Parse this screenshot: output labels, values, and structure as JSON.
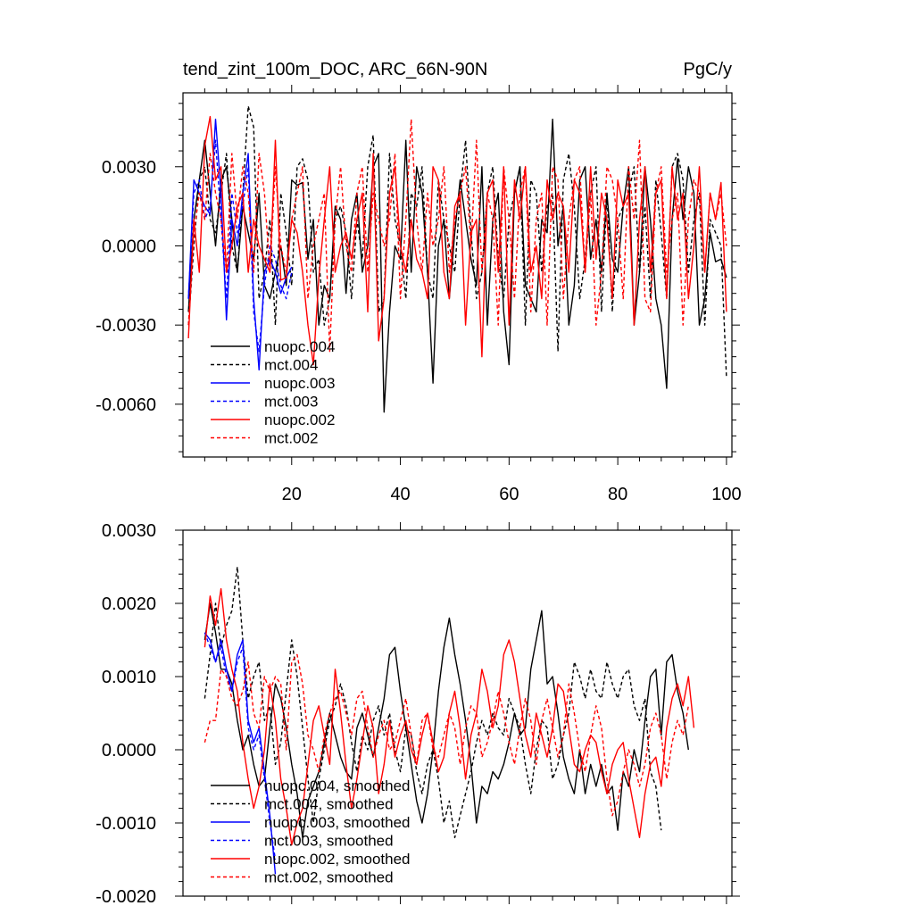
{
  "figure": {
    "title_left": "tend_zint_100m_DOC, ARC_66N-90N",
    "title_right": "PgC/y"
  },
  "colors": {
    "black": "#000000",
    "blue": "#0000ff",
    "red": "#ff0000"
  },
  "chart_data": [
    {
      "type": "line",
      "title": "tend_zint_100m_DOC, ARC_66N-90N",
      "units": "PgC/y",
      "xlabel": "",
      "ylabel": "",
      "xlim": [
        0,
        101
      ],
      "ylim": [
        -0.008,
        0.0058
      ],
      "xticks": [
        20,
        40,
        60,
        80,
        100
      ],
      "xtick_labels": [
        "20",
        "40",
        "60",
        "80",
        "100"
      ],
      "yticks": [
        -0.006,
        -0.003,
        0.0,
        0.003
      ],
      "ytick_labels": [
        "-0.0060",
        "-0.0030",
        "0.0000",
        "0.0030"
      ],
      "legend_position": "lower-left",
      "series": [
        {
          "name": "nuopc.004",
          "color": "black",
          "dash": false,
          "x_start": 1,
          "values": [
            -0.0025,
            0.001,
            0.0025,
            0.004,
            0.002,
            0.0,
            0.0025,
            0.003,
            0.001,
            -0.001,
            0.0015,
            0.0005,
            -0.0005,
            0.002,
            -0.0015,
            -0.002,
            -0.001,
            0.0,
            -0.0015,
            0.0025,
            0.0023,
            0.0024,
            -0.0005,
            0.001,
            -0.003,
            -0.0015,
            -0.002,
            0.0015,
            0.001,
            -0.0018,
            0.001,
            0.002,
            -0.001,
            0.0,
            0.003,
            0.0035,
            -0.0063,
            -0.0025,
            0.0,
            -0.0005,
            0.004,
            -0.001,
            0.003,
            0.002,
            -0.001,
            -0.0052,
            0.0,
            0.001,
            -0.002,
            0.0005,
            0.0025,
            0.001,
            -0.0005,
            -0.0015,
            0.003,
            -0.003,
            0.001,
            0.002,
            -0.0025,
            -0.0045,
            0.002,
            0.003,
            -0.0015,
            -0.002,
            -0.0025,
            0.001,
            0.0005,
            0.0048,
            0.0,
            0.0015,
            -0.003,
            -0.0015,
            0.0025,
            0.003,
            -0.0005,
            0.001,
            -0.001,
            0.002,
            -0.0005,
            -0.001,
            0.0015,
            0.003,
            -0.003,
            -0.001,
            0.003,
            0.001,
            -0.002,
            -0.003,
            -0.0054,
            0.001,
            0.0033,
            0.001,
            0.003,
            0.002,
            -0.003,
            -0.002,
            0.0005,
            -0.0006,
            -0.0005,
            -0.0012
          ]
        },
        {
          "name": "mct.004",
          "color": "black",
          "dash": true,
          "x_start": 1,
          "values": [
            -0.003,
            0.0,
            0.0025,
            0.003,
            0.001,
            0.0005,
            0.002,
            0.0035,
            0.0,
            -0.001,
            0.002,
            0.0053,
            0.0045,
            -0.002,
            -0.001,
            0.001,
            -0.003,
            0.002,
            0.0005,
            -0.0015,
            0.003,
            0.0033,
            0.0025,
            -0.001,
            -0.0005,
            -0.003,
            -0.002,
            0.001,
            0.0015,
            0.0005,
            -0.002,
            0.001,
            -0.0005,
            0.003,
            0.0042,
            -0.0025,
            -0.002,
            0.0035,
            0.001,
            0.0,
            -0.002,
            0.002,
            0.0015,
            0.003,
            -0.001,
            -0.002,
            0.0025,
            0.001,
            0.0,
            -0.001,
            0.002,
            0.004,
            0.0005,
            -0.002,
            -0.001,
            0.002,
            0.003,
            -0.0005,
            -0.002,
            0.001,
            0.002,
            0.003,
            -0.003,
            0.0025,
            0.002,
            -0.001,
            0.0015,
            0.002,
            -0.004,
            0.0025,
            0.0035,
            0.0015,
            -0.002,
            -0.0005,
            0.002,
            0.003,
            -0.0025,
            0.002,
            -0.0025,
            0.001,
            0.0015,
            0.002,
            0.003,
            -0.001,
            0.0015,
            -0.002,
            0.0025,
            0.0005,
            -0.002,
            0.003,
            0.0035,
            0.0025,
            -0.001,
            0.001,
            0.002,
            -0.003,
            0.001,
            0.0005,
            0.0,
            -0.005
          ]
        },
        {
          "name": "nuopc.003",
          "color": "blue",
          "dash": false,
          "x_start": 1,
          "values": [
            -0.002,
            0.0025,
            0.002,
            0.0015,
            0.0012,
            0.0048,
            0.002,
            -0.0028,
            0.001,
            0.0,
            0.002,
            0.0035,
            -0.002,
            -0.0047,
            -0.001,
            -0.0005,
            -0.001,
            -0.0018,
            -0.0012,
            -0.0008
          ]
        },
        {
          "name": "mct.003",
          "color": "blue",
          "dash": true,
          "x_start": 1,
          "values": [
            -0.002,
            0.002,
            0.0025,
            0.001,
            0.0015,
            0.004,
            0.001,
            -0.002,
            0.002,
            0.0005,
            0.0015,
            0.003,
            -0.0025,
            -0.004,
            -0.0015,
            0.0,
            -0.0005,
            -0.0015,
            -0.002,
            -0.001
          ]
        },
        {
          "name": "nuopc.002",
          "color": "red",
          "dash": false,
          "x_start": 1,
          "values": [
            -0.0035,
            0.001,
            -0.001,
            0.0038,
            0.0049,
            0.0025,
            0.003,
            -0.001,
            0.0,
            0.0015,
            0.002,
            -0.001,
            0.001,
            0.0,
            -0.0005,
            -0.001,
            0.004,
            -0.0013,
            -0.0012,
            0.001,
            0.0005,
            -0.001,
            -0.003,
            -0.0045,
            -0.0012,
            0.001,
            0.003,
            -0.001,
            0.0,
            0.0005,
            -0.0005,
            0.001,
            0.002,
            -0.0025,
            0.0035,
            -0.0036,
            -0.002,
            0.002,
            0.003,
            0.0,
            -0.001,
            0.001,
            -0.0005,
            -0.001,
            -0.002,
            0.003,
            0.0025,
            -0.001,
            -0.002,
            0.0015,
            0.002,
            -0.003,
            0.0005,
            0.001,
            -0.0042,
            0.002,
            0.0025,
            -0.001,
            0.003,
            -0.003,
            0.0025,
            0.001,
            0.003,
            -0.001,
            0.0,
            -0.002,
            0.0025,
            0.001,
            0.002,
            0.0015,
            -0.001,
            0.0025,
            0.002,
            -0.001,
            0.003,
            -0.0005,
            0.002,
            0.001,
            -0.002,
            0.0025,
            0.0015,
            0.002,
            -0.003,
            0.001,
            0.003,
            -0.001,
            0.002,
            0.0025,
            -0.002,
            0.003,
            0.001,
            0.002,
            -0.002,
            0.0,
            0.003,
            -0.001,
            0.002,
            0.001,
            0.0024,
            -0.0025
          ]
        },
        {
          "name": "mct.002",
          "color": "red",
          "dash": true,
          "x_start": 1,
          "values": [
            -0.003,
            0.0005,
            0.002,
            0.001,
            0.0035,
            0.002,
            0.001,
            -0.001,
            0.0035,
            0.001,
            0.003,
            0.002,
            -0.001,
            0.0035,
            0.002,
            -0.001,
            0.003,
            0.0,
            -0.001,
            0.001,
            0.002,
            0.003,
            -0.002,
            0.0,
            0.001,
            0.002,
            -0.004,
            0.001,
            0.003,
            0.0,
            -0.001,
            0.002,
            0.003,
            -0.001,
            0.002,
            0.001,
            0.0,
            0.001,
            0.0035,
            -0.002,
            0.001,
            0.0048,
            0.001,
            -0.001,
            0.002,
            0.0,
            0.001,
            0.003,
            -0.001,
            0.001,
            0.002,
            0.003,
            0.0,
            0.004,
            -0.001,
            0.002,
            0.001,
            -0.003,
            0.003,
            0.001,
            -0.002,
            0.002,
            0.003,
            -0.0025,
            0.001,
            0.002,
            -0.003,
            0.003,
            0.0025,
            -0.002,
            0.001,
            0.0025,
            0.003,
            -0.001,
            0.002,
            -0.003,
            -0.001,
            0.003,
            0.0025,
            0.001,
            -0.002,
            0.003,
            0.001,
            0.004,
            -0.002,
            -0.0025,
            0.002,
            0.003,
            -0.001,
            0.001,
            0.002,
            -0.003,
            0.001,
            0.0025,
            0.002,
            -0.001,
            0.002,
            0.001,
            0.002,
            0.0
          ]
        }
      ]
    },
    {
      "type": "line",
      "title": "",
      "xlabel": "",
      "ylabel": "",
      "xlim": [
        0,
        101
      ],
      "ylim": [
        -0.002,
        0.003
      ],
      "xticks": [
        20,
        40,
        60,
        80,
        100
      ],
      "yticks": [
        -0.002,
        -0.001,
        0.0,
        0.001,
        0.002,
        0.003
      ],
      "ytick_labels": [
        "-0.0020",
        "-0.0010",
        "0.0000",
        "0.0010",
        "0.0020",
        "0.0030"
      ],
      "legend_position": "lower-left",
      "series": [
        {
          "name": "nuopc.004, smoothed",
          "color": "black",
          "dash": false,
          "x_start": 4,
          "values": [
            0.0015,
            0.002,
            0.0016,
            0.0011,
            0.0011,
            0.0009,
            0.0004,
            0.0,
            0.0002,
            -0.0002,
            -0.0005,
            -0.0004,
            0.0003,
            0.0009,
            0.0007,
            0.0003,
            -0.0002,
            -0.0006,
            -0.0012,
            -0.0007,
            -0.0005,
            -0.0003,
            0.0001,
            0.0005,
            0.0002,
            -0.0001,
            -0.0003,
            -0.0004,
            0.0003,
            0.0005,
            0.0002,
            -0.0001,
            0.0003,
            0.0007,
            0.0013,
            0.0014,
            0.0008,
            0.0003,
            -0.0002,
            -0.0007,
            -0.001,
            -0.0006,
            0.0,
            0.0008,
            0.0014,
            0.0018,
            0.0013,
            0.0009,
            0.0004,
            -0.0002,
            -0.001,
            -0.0005,
            -0.0006,
            -0.0003,
            -0.0004,
            -0.0002,
            0.0001,
            0.0005,
            0.0002,
            0.0003,
            0.0011,
            0.0015,
            0.0019,
            0.0009,
            0.001,
            0.0005,
            -0.0001,
            -0.0004,
            -0.0006,
            0.0,
            -0.0006,
            -0.0002,
            -0.0005,
            -0.0002,
            -0.0006,
            -0.0005,
            -0.0011,
            -0.0003,
            -0.0005,
            0.0,
            -0.0003,
            0.0004,
            0.001,
            0.0011,
            0.0002,
            0.0012,
            0.0013,
            0.0008,
            0.0005,
            0.0
          ]
        },
        {
          "name": "mct.004, smoothed",
          "color": "black",
          "dash": true,
          "x_start": 4,
          "values": [
            0.0007,
            0.0013,
            0.002,
            0.0014,
            0.0017,
            0.0019,
            0.0025,
            0.0015,
            0.0007,
            0.001,
            0.0012,
            0.0004,
            0.0006,
            -0.0002,
            0.0001,
            0.0008,
            0.0015,
            0.001,
            0.0003,
            -0.0004,
            -0.001,
            -0.0004,
            0.0,
            0.0004,
            0.0006,
            0.0009,
            0.0006,
            0.0001,
            -0.0003,
            0.0002,
            0.0,
            0.0004,
            0.0006,
            0.0002,
            0.0005,
            0.0,
            -0.0003,
            0.0003,
            0.0002,
            -0.0003,
            -0.0006,
            -0.0002,
            0.0,
            -0.0004,
            -0.001,
            -0.0007,
            -0.0012,
            -0.0009,
            -0.0006,
            -0.0003,
            0.0001,
            0.0004,
            0.0002,
            0.0005,
            0.0003,
            0.0002,
            0.0007,
            0.0005,
            0.0003,
            -0.0002,
            -0.0006,
            0.0,
            0.0004,
            0.0003,
            -0.0004,
            -0.0002,
            0.0002,
            0.0005,
            0.0012,
            0.001,
            0.0007,
            0.0011,
            0.0008,
            0.0007,
            0.0012,
            0.0009,
            0.0007,
            0.001,
            0.0011,
            0.0006,
            0.0004,
            0.0007,
            -0.0003,
            -0.0005,
            -0.0011
          ]
        },
        {
          "name": "nuopc.003, smoothed",
          "color": "blue",
          "dash": false,
          "x_start": 4,
          "values": [
            0.0016,
            0.0015,
            0.0012,
            0.0015,
            0.0011,
            0.0008,
            0.0013,
            0.0015,
            0.0004,
            0.0001,
            0.0003,
            -0.0003,
            -0.0009,
            -0.0017
          ]
        },
        {
          "name": "mct.003, smoothed",
          "color": "blue",
          "dash": true,
          "x_start": 4,
          "values": [
            0.0016,
            0.0014,
            0.0012,
            0.0014,
            0.001,
            0.0008,
            0.0012,
            0.0014,
            0.0003,
            0.0,
            0.0002,
            -0.0004,
            -0.001,
            -0.0015
          ]
        },
        {
          "name": "nuopc.002, smoothed",
          "color": "red",
          "dash": false,
          "x_start": 4,
          "values": [
            0.0014,
            0.0021,
            0.0017,
            0.0022,
            0.0015,
            0.0011,
            0.0008,
            0.0001,
            -0.0004,
            -0.0008,
            -0.0005,
            0.0,
            0.0009,
            0.0004,
            -0.0004,
            -0.0008,
            -0.0013,
            -0.001,
            -0.0008,
            -0.0002,
            0.0004,
            0.0006,
            0.0002,
            -0.0002,
            0.0011,
            0.0005,
            -0.0002,
            -0.0008,
            -0.0004,
            0.0001,
            0.0006,
            0.0003,
            -0.0006,
            -0.0002,
            0.0004,
            -0.0001,
            0.0002,
            0.0004,
            0.0,
            -0.0002,
            0.0002,
            0.0005,
            0.0001,
            -0.0003,
            -0.0001,
            0.0005,
            0.0008,
            0.0003,
            -0.0004,
            0.0002,
            0.0005,
            0.0011,
            0.0008,
            0.0003,
            0.0006,
            0.0013,
            0.0015,
            0.0012,
            0.0007,
            0.0002,
            -0.0001,
            0.0005,
            0.0002,
            -0.0001,
            0.0003,
            0.0009,
            0.0008,
            0.0003,
            -0.0002,
            -0.0003,
            0.0,
            0.0002,
            0.0001,
            -0.0003,
            -0.0006,
            -0.0002,
            0.0,
            0.0001,
            -0.0004,
            -0.0008,
            -0.0012,
            -0.0006,
            -0.0002,
            -0.0001,
            -0.0005,
            0.0003,
            0.0007,
            0.0009,
            0.0006,
            0.001,
            0.0003
          ]
        },
        {
          "name": "mct.002, smoothed",
          "color": "red",
          "dash": true,
          "x_start": 4,
          "values": [
            0.0001,
            0.0004,
            0.0004,
            0.0011,
            0.001,
            0.0007,
            0.0006,
            0.0008,
            0.0012,
            0.0005,
            0.0003,
            0.001,
            0.0008,
            0.001,
            0.0009,
            0.0,
            0.0012,
            0.0013,
            0.0009,
            0.0002,
            0.0,
            -0.0003,
            0.0002,
            0.0005,
            0.0007,
            0.0008,
            0.0005,
            0.0002,
            0.0007,
            0.0008,
            0.0003,
            -0.0001,
            0.0002,
            0.0004,
            0.0,
            0.0001,
            0.0004,
            0.0007,
            0.0002,
            -0.0002,
            0.0004,
            0.0005,
            0.0,
            -0.0001,
            0.0002,
            0.0005,
            0.0003,
            -0.0002,
            0.0003,
            0.0006,
            0.0005,
            -0.0001,
            0.0001,
            0.0004,
            0.0008,
            0.0005,
            0.0001,
            -0.0002,
            0.0003,
            0.0007,
            0.0004,
            -0.0002,
            0.0004,
            0.0007,
            0.0003,
            -0.0001,
            0.0002,
            0.0009,
            0.0005,
            0.0,
            -0.0003,
            0.0002,
            0.0006,
            0.0003,
            -0.0004,
            -0.0009,
            -0.0007,
            -0.0003,
            0.0,
            -0.0002,
            -0.0005,
            -0.0002,
            0.0003,
            0.0005,
            0.0002,
            -0.0004,
            0.0001,
            0.0004,
            0.0002,
            0.0006
          ]
        }
      ]
    }
  ]
}
